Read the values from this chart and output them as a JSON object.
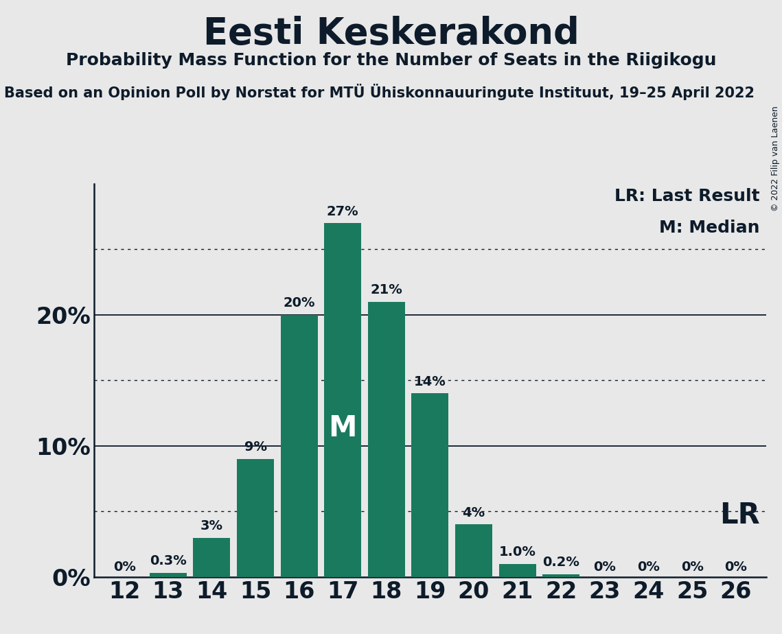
{
  "title": "Eesti Keskerakond",
  "subtitle": "Probability Mass Function for the Number of Seats in the Riigikogu",
  "source_line": "Based on an Opinion Poll by Norstat for MTÜ Ühiskonnauuringute Instituut, 19–25 April 2022",
  "copyright": "© 2022 Filip van Laenen",
  "seats": [
    12,
    13,
    14,
    15,
    16,
    17,
    18,
    19,
    20,
    21,
    22,
    23,
    24,
    25,
    26
  ],
  "probabilities": [
    0.0,
    0.3,
    3.0,
    9.0,
    20.0,
    27.0,
    21.0,
    14.0,
    4.0,
    1.0,
    0.2,
    0.0,
    0.0,
    0.0,
    0.0
  ],
  "bar_color": "#1a7a5e",
  "median_seat": 17,
  "last_result_seat": 26,
  "background_color": "#e8e8e8",
  "text_color": "#0d1b2a",
  "grid_solid_color": "#0d1b2a",
  "grid_dotted_color": "#0d1b2a",
  "yticks_solid": [
    0,
    10,
    20
  ],
  "yticks_dotted": [
    5,
    15,
    25
  ],
  "ylim": [
    0,
    30
  ],
  "xlim_left": 11.3,
  "xlim_right": 26.7,
  "bar_labels": [
    "0%",
    "0.3%",
    "3%",
    "9%",
    "20%",
    "27%",
    "21%",
    "14%",
    "4%",
    "1.0%",
    "0.2%",
    "0%",
    "0%",
    "0%",
    "0%"
  ],
  "bar_label_fontsize": 14,
  "ytick_fontsize": 24,
  "xtick_fontsize": 24,
  "title_fontsize": 38,
  "subtitle_fontsize": 18,
  "source_fontsize": 15,
  "legend_fontsize": 18,
  "lr_fontsize": 30,
  "median_fontsize": 30,
  "copyright_fontsize": 9
}
